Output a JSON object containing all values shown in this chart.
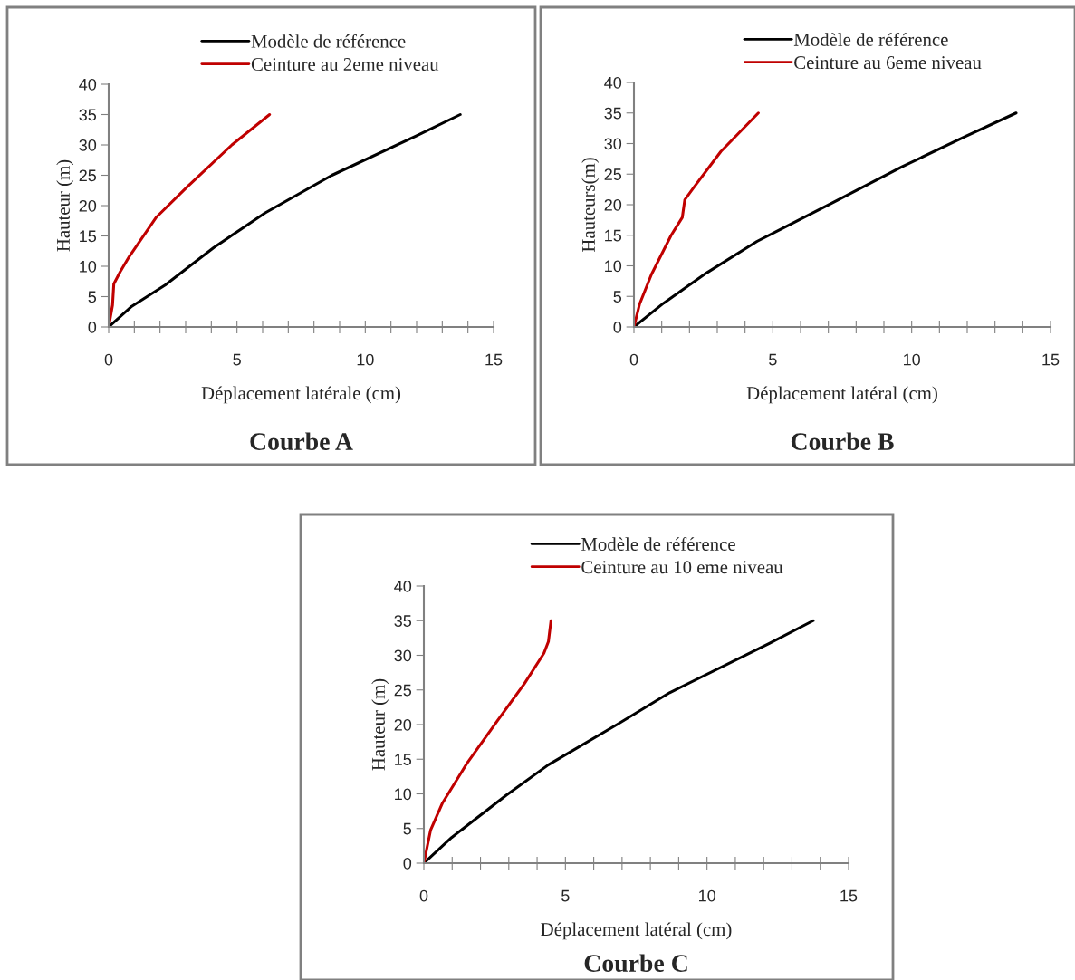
{
  "chart_data": [
    {
      "type": "line",
      "title": "Courbe A",
      "xlabel": "Déplacement latérale (cm)",
      "ylabel": "Hauteur (m)",
      "legend": "top",
      "grid": false,
      "marker": "none",
      "line_style": "solid",
      "xlim": [
        0,
        15
      ],
      "ylim": [
        0,
        40
      ],
      "xticks": [
        0,
        {
          "value": 1,
          "label": null
        },
        {
          "value": 2,
          "label": null
        },
        {
          "value": 3,
          "label": null
        },
        {
          "value": 4,
          "label": null
        },
        5,
        {
          "value": 6,
          "label": null
        },
        {
          "value": 7,
          "label": null
        },
        {
          "value": 8,
          "label": null
        },
        {
          "value": 9,
          "label": null
        },
        10,
        {
          "value": 11,
          "label": null
        },
        {
          "value": 12,
          "label": null
        },
        {
          "value": 13,
          "label": null
        },
        {
          "value": 14,
          "label": null
        },
        15
      ],
      "yticks": [
        0,
        5,
        10,
        15,
        20,
        25,
        30,
        35,
        40
      ],
      "series": [
        {
          "name": "Modèle de référence",
          "color": "#000000",
          "x": [
            0,
            0.9,
            2.2,
            4.1,
            6.1,
            8.7,
            12,
            13.7
          ],
          "values": [
            0,
            3.4,
            6.9,
            13.1,
            18.8,
            25,
            31.5,
            35
          ]
        },
        {
          "name": "Ceinture au 2eme niveau",
          "color": "#c00000",
          "x": [
            0,
            0.15,
            0.2,
            0.45,
            0.8,
            1.86,
            3.04,
            4.8,
            6.27
          ],
          "values": [
            0,
            3.6,
            7.1,
            9.1,
            11.6,
            18.1,
            23,
            30,
            35
          ]
        }
      ]
    },
    {
      "type": "line",
      "title": "Courbe B",
      "xlabel": "Déplacement latéral (cm)",
      "ylabel": "Hauteurs(m)",
      "legend": "top",
      "grid": false,
      "marker": "none",
      "line_style": "solid",
      "xlim": [
        0,
        15
      ],
      "ylim": [
        0,
        40
      ],
      "xticks": [
        0,
        {
          "value": 1,
          "label": null
        },
        {
          "value": 2,
          "label": null
        },
        {
          "value": 3,
          "label": null
        },
        {
          "value": 4,
          "label": null
        },
        5,
        {
          "value": 6,
          "label": null
        },
        {
          "value": 7,
          "label": null
        },
        {
          "value": 8,
          "label": null
        },
        {
          "value": 9,
          "label": null
        },
        10,
        {
          "value": 11,
          "label": null
        },
        {
          "value": 12,
          "label": null
        },
        {
          "value": 13,
          "label": null
        },
        {
          "value": 14,
          "label": null
        },
        15
      ],
      "yticks": [
        0,
        5,
        10,
        15,
        20,
        25,
        30,
        35,
        40
      ],
      "series": [
        {
          "name": "Modèle de référence",
          "color": "#000000",
          "x": [
            0,
            1.07,
            2.6,
            4.43,
            7.15,
            9.65,
            11.9,
            13.76
          ],
          "values": [
            0,
            3.9,
            8.8,
            14,
            20.3,
            26.2,
            31.1,
            35
          ]
        },
        {
          "name": "Ceinture au 6eme niveau",
          "color": "#c00000",
          "x": [
            0,
            0.2,
            0.63,
            1.34,
            1.74,
            1.83,
            2.15,
            3.13,
            4.48
          ],
          "values": [
            0,
            3.7,
            8.6,
            15,
            17.9,
            20.8,
            22.8,
            28.7,
            35
          ]
        }
      ]
    },
    {
      "type": "line",
      "title": "Courbe C",
      "xlabel": "Déplacement latéral (cm)",
      "ylabel": "Hauteur (m)",
      "legend": "top",
      "grid": false,
      "marker": "none",
      "line_style": "solid",
      "xlim": [
        0,
        15
      ],
      "ylim": [
        0,
        40
      ],
      "xticks": [
        0,
        {
          "value": 1,
          "label": null
        },
        {
          "value": 2,
          "label": null
        },
        {
          "value": 3,
          "label": null
        },
        {
          "value": 4,
          "label": null
        },
        5,
        {
          "value": 6,
          "label": null
        },
        {
          "value": 7,
          "label": null
        },
        {
          "value": 8,
          "label": null
        },
        {
          "value": 9,
          "label": null
        },
        10,
        {
          "value": 11,
          "label": null
        },
        {
          "value": 12,
          "label": null
        },
        {
          "value": 13,
          "label": null
        },
        {
          "value": 14,
          "label": null
        },
        15
      ],
      "yticks": [
        0,
        5,
        10,
        15,
        20,
        25,
        30,
        35,
        40
      ],
      "series": [
        {
          "name": "Modèle de référence",
          "color": "#000000",
          "x": [
            0,
            0.98,
            2.91,
            4.4,
            6.86,
            8.68,
            12.2,
            13.75
          ],
          "values": [
            0,
            3.7,
            9.8,
            14.2,
            20.1,
            24.6,
            31.7,
            35
          ]
        },
        {
          "name": "Ceinture au 10 eme niveau",
          "color": "#c00000",
          "x": [
            0,
            0.24,
            0.66,
            1.52,
            2.59,
            3.55,
            4.24,
            4.4,
            4.49
          ],
          "values": [
            0,
            4.8,
            8.7,
            14.4,
            20.5,
            25.9,
            30.3,
            32,
            35
          ]
        }
      ]
    }
  ]
}
